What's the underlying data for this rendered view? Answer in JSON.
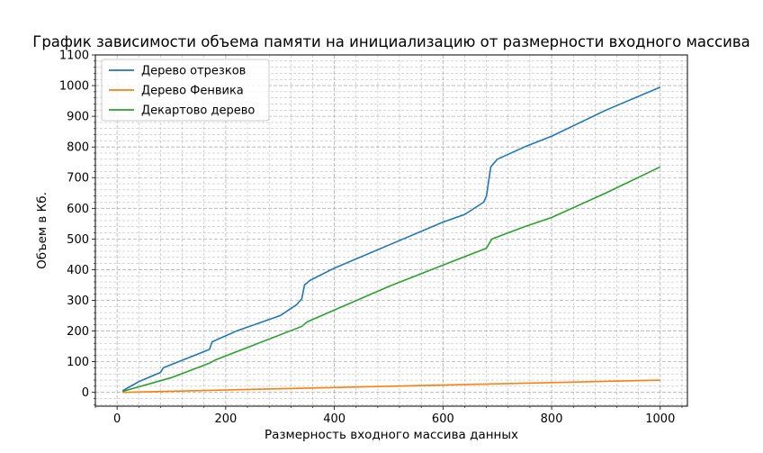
{
  "chart_data": {
    "type": "line",
    "title": "График зависимости объема памяти на инициализацию от размерности входного массива",
    "xlabel": "Размерность входного массива данных",
    "ylabel": "Объем в Кб.",
    "xlim": [
      -40,
      1050
    ],
    "ylim": [
      -45,
      1100
    ],
    "xticks": [
      0,
      200,
      400,
      600,
      800,
      1000
    ],
    "yticks": [
      0,
      100,
      200,
      300,
      400,
      500,
      600,
      700,
      800,
      900,
      1000,
      1100
    ],
    "grid": true,
    "legend_position": "upper left",
    "series": [
      {
        "name": "Дерево отрезков",
        "color": "#1f77b4",
        "points": [
          [
            10,
            5
          ],
          [
            40,
            35
          ],
          [
            80,
            65
          ],
          [
            85,
            80
          ],
          [
            170,
            140
          ],
          [
            175,
            165
          ],
          [
            220,
            200
          ],
          [
            300,
            250
          ],
          [
            330,
            285
          ],
          [
            340,
            305
          ],
          [
            345,
            350
          ],
          [
            355,
            365
          ],
          [
            400,
            405
          ],
          [
            500,
            480
          ],
          [
            600,
            555
          ],
          [
            640,
            580
          ],
          [
            675,
            620
          ],
          [
            680,
            640
          ],
          [
            685,
            700
          ],
          [
            688,
            735
          ],
          [
            700,
            760
          ],
          [
            750,
            800
          ],
          [
            800,
            835
          ],
          [
            900,
            920
          ],
          [
            920,
            935
          ],
          [
            1000,
            995
          ]
        ]
      },
      {
        "name": "Дерево Фенвика",
        "color": "#ff7f0e",
        "points": [
          [
            10,
            0
          ],
          [
            1000,
            40
          ]
        ]
      },
      {
        "name": "Декартово дерево",
        "color": "#2ca02c",
        "points": [
          [
            10,
            3
          ],
          [
            100,
            48
          ],
          [
            170,
            95
          ],
          [
            180,
            105
          ],
          [
            340,
            215
          ],
          [
            350,
            230
          ],
          [
            500,
            345
          ],
          [
            600,
            415
          ],
          [
            680,
            470
          ],
          [
            690,
            500
          ],
          [
            750,
            540
          ],
          [
            800,
            570
          ],
          [
            900,
            650
          ],
          [
            1000,
            735
          ]
        ]
      }
    ]
  }
}
